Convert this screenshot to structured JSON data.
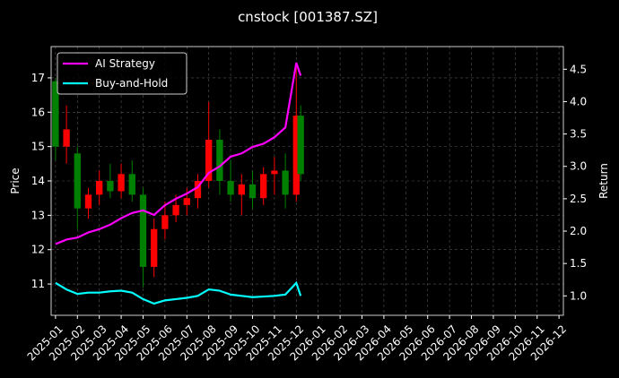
{
  "chart_data": {
    "type": "candlestick",
    "title": "cnstock [001387.SZ]",
    "ylabel": "Price",
    "y2label": "Return",
    "x": [
      0,
      0.5,
      1,
      1.5,
      2,
      2.5,
      3,
      3.5,
      4,
      4.5,
      5,
      5.5,
      6,
      6.5,
      7,
      7.5,
      8,
      8.5,
      9,
      9.5,
      10,
      10.5,
      11,
      11.2
    ],
    "open": [
      16.9,
      15.0,
      14.8,
      13.2,
      13.6,
      14.0,
      13.7,
      14.2,
      13.6,
      11.5,
      12.6,
      13.0,
      13.3,
      13.5,
      14.0,
      15.2,
      14.0,
      13.6,
      13.9,
      13.5,
      14.2,
      14.3,
      13.6,
      15.9
    ],
    "high": [
      17.0,
      16.2,
      15.0,
      13.8,
      14.3,
      14.5,
      14.5,
      14.6,
      13.8,
      12.9,
      13.4,
      13.6,
      13.8,
      14.2,
      16.3,
      15.5,
      14.6,
      14.2,
      14.3,
      14.4,
      14.7,
      14.8,
      17.3,
      16.2
    ],
    "low": [
      14.6,
      14.5,
      12.6,
      12.9,
      13.3,
      13.5,
      13.5,
      13.4,
      10.9,
      11.2,
      12.3,
      12.8,
      13.0,
      13.2,
      13.8,
      13.6,
      13.4,
      13.0,
      13.2,
      13.3,
      13.6,
      13.2,
      13.4,
      14.0
    ],
    "close": [
      15.0,
      15.5,
      13.2,
      13.6,
      14.0,
      13.7,
      14.2,
      13.6,
      11.5,
      12.6,
      13.0,
      13.3,
      13.5,
      14.0,
      15.2,
      14.0,
      13.6,
      13.9,
      13.5,
      14.2,
      14.3,
      13.6,
      15.9,
      14.2
    ],
    "up_color": "#ff0000",
    "down_color": "#008000",
    "series": [
      {
        "name": "AI Strategy",
        "color": "#ff00ff",
        "axis": "y2",
        "values": [
          1.8,
          1.87,
          1.9,
          1.98,
          2.03,
          2.1,
          2.2,
          2.28,
          2.32,
          2.25,
          2.4,
          2.5,
          2.58,
          2.68,
          2.9,
          3.0,
          3.15,
          3.2,
          3.3,
          3.35,
          3.45,
          3.6,
          4.6,
          4.4
        ]
      },
      {
        "name": "Buy-and-Hold",
        "color": "#00ffff",
        "axis": "y2",
        "values": [
          1.2,
          1.1,
          1.03,
          1.05,
          1.05,
          1.07,
          1.08,
          1.05,
          0.95,
          0.88,
          0.93,
          0.95,
          0.97,
          1.0,
          1.1,
          1.08,
          1.02,
          1.0,
          0.98,
          0.99,
          1.0,
          1.02,
          1.2,
          1.0
        ]
      }
    ],
    "xlim": [
      -0.2,
      23.2
    ],
    "xticks": [
      {
        "value": 0,
        "label": "2025-01"
      },
      {
        "value": 1,
        "label": "2025-02"
      },
      {
        "value": 2,
        "label": "2025-03"
      },
      {
        "value": 3,
        "label": "2025-04"
      },
      {
        "value": 4,
        "label": "2025-05"
      },
      {
        "value": 5,
        "label": "2025-06"
      },
      {
        "value": 6,
        "label": "2025-07"
      },
      {
        "value": 7,
        "label": "2025-08"
      },
      {
        "value": 8,
        "label": "2025-09"
      },
      {
        "value": 9,
        "label": "2025-10"
      },
      {
        "value": 10,
        "label": "2025-11"
      },
      {
        "value": 11,
        "label": "2025-12"
      },
      {
        "value": 12,
        "label": "2026-01"
      },
      {
        "value": 13,
        "label": "2026-02"
      },
      {
        "value": 14,
        "label": "2026-03"
      },
      {
        "value": 15,
        "label": "2026-04"
      },
      {
        "value": 16,
        "label": "2026-05"
      },
      {
        "value": 17,
        "label": "2026-06"
      },
      {
        "value": 18,
        "label": "2026-07"
      },
      {
        "value": 19,
        "label": "2026-08"
      },
      {
        "value": 20,
        "label": "2026-09"
      },
      {
        "value": 21,
        "label": "2026-10"
      },
      {
        "value": 22,
        "label": "2026-11"
      },
      {
        "value": 23,
        "label": "2026-12"
      }
    ],
    "ylim": [
      10.09,
      17.91
    ],
    "yticks": [
      11,
      12,
      13,
      14,
      15,
      16,
      17
    ],
    "y2lim": [
      0.7,
      4.85
    ],
    "y2ticks": [
      {
        "value": 1,
        "label": "1.0"
      },
      1.5,
      {
        "value": 2,
        "label": "2.0"
      },
      2.5,
      {
        "value": 3,
        "label": "3.0"
      },
      3.5,
      {
        "value": 4,
        "label": "4.0"
      },
      4.5
    ],
    "grid": true,
    "legend": "upper left"
  }
}
